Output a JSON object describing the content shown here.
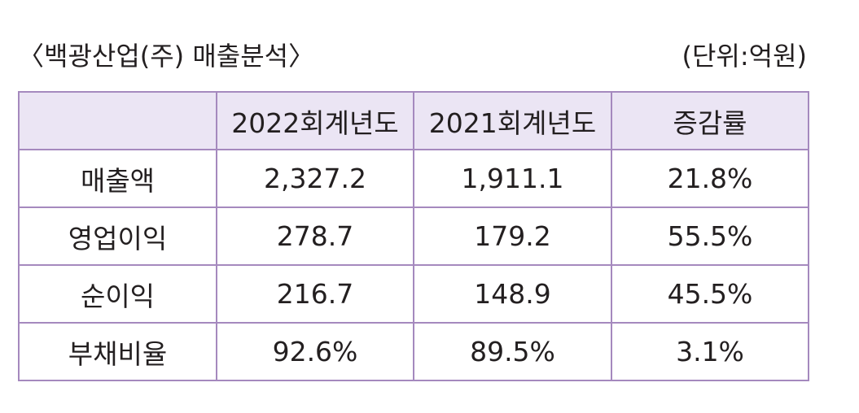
{
  "caption": {
    "title": "〈백광산업(주) 매출분석〉",
    "unit": "(단위:억원)"
  },
  "table": {
    "headers": [
      "",
      "2022회계년도",
      "2021회계년도",
      "증감률"
    ],
    "rows": [
      {
        "label": "매출액",
        "values": [
          "2,327.2",
          "1,911.1",
          "21.8%"
        ]
      },
      {
        "label": "영업이익",
        "values": [
          "278.7",
          "179.2",
          "55.5%"
        ]
      },
      {
        "label": "순이익",
        "values": [
          "216.7",
          "148.9",
          "45.5%"
        ]
      },
      {
        "label": "부채비율",
        "values": [
          "92.6%",
          "89.5%",
          "3.1%"
        ]
      }
    ]
  },
  "colors": {
    "border": "#a589be",
    "header_bg": "#ebe5f4",
    "text": "#231f20"
  }
}
